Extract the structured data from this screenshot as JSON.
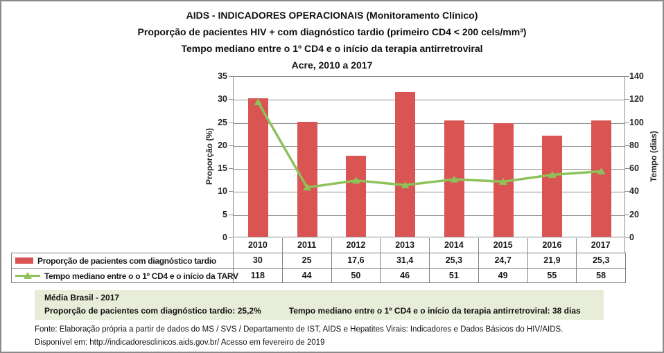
{
  "title": {
    "line1": "AIDS - INDICADORES OPERACIONAIS (Monitoramento Clínico)",
    "line2": "Proporção de pacientes HIV + com diagnóstico tardio (primeiro CD4 < 200 cels/mm³)",
    "line3": "Tempo mediano entre o 1º CD4 e o início da terapia antirretroviral",
    "line4": "Acre, 2010 a 2017"
  },
  "chart_data": {
    "type": "bar+line",
    "categories": [
      "2010",
      "2011",
      "2012",
      "2013",
      "2014",
      "2015",
      "2016",
      "2017"
    ],
    "series": [
      {
        "name": "Proporção de pacientes com diagnóstico tardio",
        "type": "bar",
        "axis": "left",
        "values": [
          30,
          25,
          17.6,
          31.4,
          25.3,
          24.7,
          21.9,
          25.3
        ]
      },
      {
        "name": "Tempo mediano entre o o 1º CD4 e o início da TARV",
        "type": "line",
        "axis": "right",
        "marker": "triangle",
        "values": [
          118,
          44,
          50,
          46,
          51,
          49,
          55,
          58
        ]
      }
    ],
    "left_axis": {
      "label": "Proporção (%)",
      "min": 0,
      "max": 35,
      "step": 5,
      "ticks": [
        0,
        5,
        10,
        15,
        20,
        25,
        30,
        35
      ]
    },
    "right_axis": {
      "label": "Tempo  (dias)",
      "min": 0,
      "max": 140,
      "step": 20,
      "ticks": [
        0,
        20,
        40,
        60,
        80,
        100,
        120,
        140
      ]
    },
    "grid": true,
    "legend_position": "table-bottom"
  },
  "table": {
    "rows": [
      {
        "label": "Proporção de pacientes com diagnóstico tardio",
        "key": "bar",
        "values": [
          "30",
          "25",
          "17,6",
          "31,4",
          "25,3",
          "24,7",
          "21,9",
          "25,3"
        ]
      },
      {
        "label": "Tempo mediano entre o o 1º CD4 e o início da TARV",
        "key": "line",
        "values": [
          "118",
          "44",
          "50",
          "46",
          "51",
          "49",
          "55",
          "58"
        ]
      }
    ]
  },
  "media_brasil": {
    "title": "Média Brasil - 2017",
    "left": "Proporção de pacientes com diagnóstico tardio: 25,2%",
    "right": "Tempo mediano entre o 1º CD4 e o início da terapia antirretroviral: 38 dias"
  },
  "footer": {
    "line1": "Fonte: Elaboração própria a partir de dados do MS / SVS / Departamento de IST, AIDS e Hepatites Virais: Indicadores e Dados Básicos do HIV/AIDS.",
    "line2": "Disponível em: http://indicadoresclinicos.aids.gov.br/ Acesso em fevereiro de 2019"
  },
  "colors": {
    "bar": "#d95452",
    "line": "#8ec15a",
    "grid": "#8c8c8c",
    "table_border": "#808080",
    "box_bg": "#e8edd9",
    "axis_text": "#262626"
  }
}
